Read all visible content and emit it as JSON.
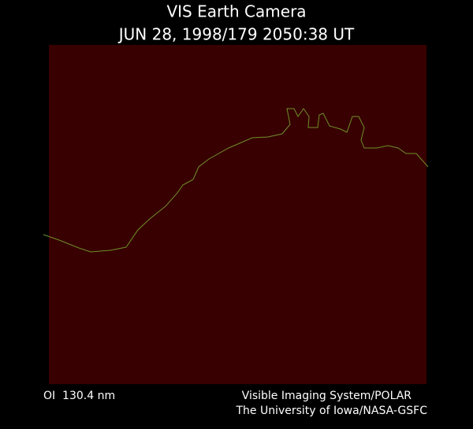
{
  "header": {
    "title": "VIS Earth Camera",
    "subtitle": "JUN 28, 1998/179 2050:38 UT"
  },
  "footer": {
    "filter": "OI  130.4 nm",
    "instrument": "Visible Imaging System/POLAR",
    "institution": "The University of Iowa/NASA-GSFC"
  }
}
